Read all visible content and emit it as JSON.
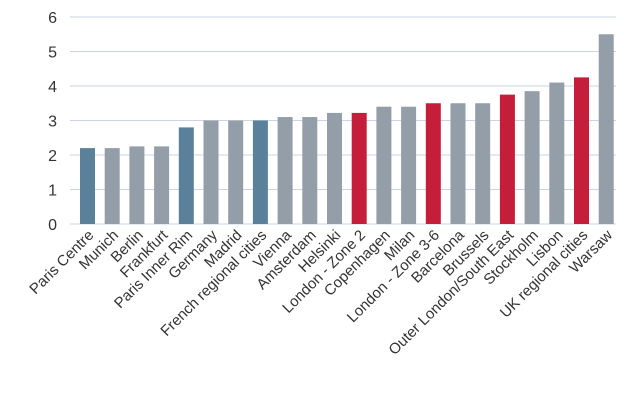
{
  "chart_data": {
    "type": "bar",
    "categories": [
      "Paris Centre",
      "Munich",
      "Berlin",
      "Frankfurt",
      "Paris Inner Rim",
      "Germany",
      "Madrid",
      "French regional cities",
      "Vienna",
      "Amsterdam",
      "Helsinki",
      "London - Zone 2",
      "Copenhagen",
      "Milan",
      "London - Zone 3-6",
      "Barcelona",
      "Brussels",
      "Outer London/South East",
      "Stockholm",
      "Lisbon",
      "UK regional cities",
      "Warsaw"
    ],
    "values": [
      2.2,
      2.2,
      2.25,
      2.25,
      2.8,
      3.0,
      3.0,
      3.0,
      3.1,
      3.1,
      3.22,
      3.22,
      3.4,
      3.4,
      3.5,
      3.5,
      3.5,
      3.75,
      3.85,
      4.1,
      4.25,
      5.5
    ],
    "groups": [
      "france",
      "other",
      "other",
      "other",
      "france",
      "other",
      "other",
      "france",
      "other",
      "other",
      "other",
      "uk",
      "other",
      "other",
      "uk",
      "other",
      "other",
      "uk",
      "other",
      "other",
      "uk",
      "other"
    ],
    "colors": {
      "france": "#5b8099",
      "uk": "#c41e3a",
      "other": "#939ea9"
    },
    "y_ticks": [
      "0",
      "1",
      "2",
      "3",
      "4",
      "5",
      "6"
    ],
    "ylim": [
      0,
      6
    ],
    "grid": true,
    "title": "",
    "xlabel": "",
    "ylabel": ""
  }
}
